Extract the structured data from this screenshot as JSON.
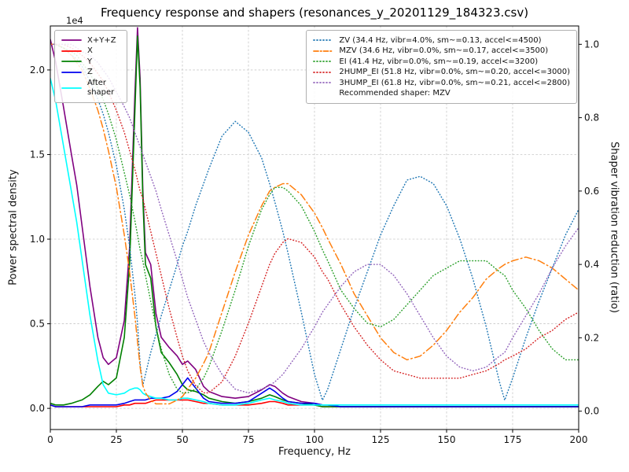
{
  "title": "Frequency response and shapers (resonances_y_20201129_184323.csv)",
  "axes": {
    "x_label": "Frequency, Hz",
    "y_left_label": "Power spectral density",
    "y_left_multiplier": "1e4",
    "y_right_label": "Shaper vibration reduction (ratio)"
  },
  "legend_psd": {
    "items": [
      {
        "key": "xyz",
        "label": "X+Y+Z"
      },
      {
        "key": "x",
        "label": "X"
      },
      {
        "key": "y",
        "label": "Y"
      },
      {
        "key": "z",
        "label": "Z"
      },
      {
        "key": "after",
        "label": "After shaper"
      }
    ]
  },
  "legend_shapers": {
    "items": [
      {
        "key": "zv",
        "label": "ZV (34.4 Hz, vibr=4.0%, sm~=0.13, accel<=4500)"
      },
      {
        "key": "mzv",
        "label": "MZV (34.6 Hz, vibr=0.0%, sm~=0.17, accel<=3500)"
      },
      {
        "key": "ei",
        "label": "EI (41.4 Hz, vibr=0.0%, sm~=0.19, accel<=3200)"
      },
      {
        "key": "hump2",
        "label": "2HUMP_EI (51.8 Hz, vibr=0.0%, sm~=0.20, accel<=3000)"
      },
      {
        "key": "hump3",
        "label": "3HUMP_EI (61.8 Hz, vibr=0.0%, sm~=0.21, accel<=2800)"
      }
    ],
    "recommendation": "Recommended shaper: MZV"
  },
  "chart_data": {
    "type": "line",
    "title": "Frequency response and shapers (resonances_y_20201129_184323.csv)",
    "xlabel": "Frequency, Hz",
    "ylabel_left": "Power spectral density",
    "ylabel_right": "Shaper vibration reduction (ratio)",
    "grid": true,
    "x_range": [
      0,
      200
    ],
    "x_ticks": [
      0,
      25,
      50,
      75,
      100,
      125,
      150,
      175,
      200
    ],
    "y_left_range": [
      -0.125,
      2.26
    ],
    "y_left_ticks": [
      0.0,
      0.5,
      1.0,
      1.5,
      2.0
    ],
    "y_left_units": "1e4",
    "y_right_range": [
      -0.05,
      1.05
    ],
    "y_right_ticks": [
      0.0,
      0.2,
      0.4,
      0.6,
      0.8,
      1.0
    ],
    "recommended_shaper": "MZV",
    "x": [
      0,
      2,
      5,
      8,
      10,
      12,
      15,
      18,
      20,
      22,
      25,
      28,
      30,
      32,
      33,
      34,
      35,
      36,
      38,
      40,
      42,
      45,
      48,
      50,
      52,
      55,
      58,
      60,
      65,
      70,
      75,
      80,
      83,
      85,
      88,
      90,
      95,
      100,
      103,
      105,
      110,
      115,
      120,
      125,
      130,
      135,
      140,
      145,
      150,
      155,
      160,
      165,
      170,
      172,
      175,
      180,
      185,
      190,
      195,
      200
    ],
    "psd_series": [
      {
        "key": "xyz",
        "name": "X+Y+Z",
        "color": "#800080",
        "dash": "solid",
        "axis": "left",
        "values": [
          2.18,
          2.05,
          1.78,
          1.5,
          1.32,
          1.08,
          0.72,
          0.42,
          0.3,
          0.26,
          0.3,
          0.52,
          0.95,
          1.85,
          2.25,
          1.95,
          1.3,
          0.92,
          0.85,
          0.56,
          0.42,
          0.36,
          0.31,
          0.26,
          0.28,
          0.23,
          0.13,
          0.1,
          0.07,
          0.06,
          0.07,
          0.11,
          0.14,
          0.13,
          0.09,
          0.07,
          0.04,
          0.03,
          0.02,
          0.02,
          0.01,
          0.01,
          0.01,
          0.01,
          0.01,
          0.01,
          0.01,
          0.01,
          0.01,
          0.01,
          0.01,
          0.01,
          0.01,
          0.01,
          0.01,
          0.01,
          0.01,
          0.01,
          0.01,
          0.01
        ]
      },
      {
        "key": "x",
        "name": "X",
        "color": "#ff0000",
        "dash": "solid",
        "axis": "left",
        "values": [
          0.02,
          0.01,
          0.01,
          0.01,
          0.01,
          0.01,
          0.01,
          0.01,
          0.01,
          0.01,
          0.01,
          0.02,
          0.02,
          0.03,
          0.03,
          0.03,
          0.03,
          0.03,
          0.04,
          0.05,
          0.05,
          0.05,
          0.05,
          0.05,
          0.05,
          0.04,
          0.03,
          0.03,
          0.02,
          0.02,
          0.02,
          0.03,
          0.04,
          0.04,
          0.03,
          0.02,
          0.02,
          0.02,
          0.01,
          0.01,
          0.01,
          0.01,
          0.01,
          0.01,
          0.01,
          0.01,
          0.01,
          0.01,
          0.01,
          0.01,
          0.01,
          0.01,
          0.01,
          0.01,
          0.01,
          0.01,
          0.01,
          0.01,
          0.01,
          0.01
        ]
      },
      {
        "key": "y",
        "name": "Y",
        "color": "#008000",
        "dash": "solid",
        "axis": "left",
        "values": [
          0.03,
          0.02,
          0.02,
          0.03,
          0.04,
          0.05,
          0.08,
          0.13,
          0.16,
          0.14,
          0.18,
          0.42,
          0.85,
          1.75,
          2.2,
          1.9,
          1.25,
          0.85,
          0.77,
          0.48,
          0.33,
          0.27,
          0.2,
          0.14,
          0.11,
          0.1,
          0.08,
          0.06,
          0.04,
          0.03,
          0.04,
          0.06,
          0.08,
          0.07,
          0.05,
          0.04,
          0.03,
          0.02,
          0.01,
          0.01,
          0.01,
          0.01,
          0.01,
          0.01,
          0.01,
          0.01,
          0.01,
          0.01,
          0.01,
          0.01,
          0.01,
          0.01,
          0.01,
          0.01,
          0.01,
          0.01,
          0.01,
          0.01,
          0.01,
          0.01
        ]
      },
      {
        "key": "z",
        "name": "Z",
        "color": "#0000ee",
        "dash": "solid",
        "axis": "left",
        "values": [
          0.02,
          0.01,
          0.01,
          0.01,
          0.01,
          0.01,
          0.02,
          0.02,
          0.02,
          0.02,
          0.02,
          0.03,
          0.04,
          0.05,
          0.05,
          0.05,
          0.05,
          0.05,
          0.06,
          0.06,
          0.06,
          0.07,
          0.1,
          0.14,
          0.18,
          0.12,
          0.06,
          0.04,
          0.03,
          0.03,
          0.04,
          0.09,
          0.12,
          0.1,
          0.06,
          0.04,
          0.03,
          0.03,
          0.02,
          0.02,
          0.01,
          0.01,
          0.01,
          0.01,
          0.01,
          0.01,
          0.01,
          0.01,
          0.01,
          0.01,
          0.01,
          0.01,
          0.01,
          0.01,
          0.01,
          0.01,
          0.01,
          0.01,
          0.01,
          0.01
        ]
      },
      {
        "key": "after",
        "name": "After shaper",
        "color": "#00ffff",
        "dash": "solid",
        "axis": "left",
        "values": [
          1.95,
          1.82,
          1.55,
          1.28,
          1.1,
          0.88,
          0.55,
          0.28,
          0.14,
          0.09,
          0.08,
          0.09,
          0.11,
          0.12,
          0.12,
          0.11,
          0.09,
          0.08,
          0.07,
          0.06,
          0.06,
          0.05,
          0.05,
          0.06,
          0.06,
          0.05,
          0.04,
          0.03,
          0.02,
          0.02,
          0.03,
          0.05,
          0.06,
          0.05,
          0.04,
          0.03,
          0.02,
          0.02,
          0.02,
          0.02,
          0.02,
          0.02,
          0.02,
          0.02,
          0.02,
          0.02,
          0.02,
          0.02,
          0.02,
          0.02,
          0.02,
          0.02,
          0.02,
          0.02,
          0.02,
          0.02,
          0.02,
          0.02,
          0.02,
          0.02
        ]
      }
    ],
    "shaper_series": [
      {
        "key": "zv",
        "name": "ZV",
        "freq_hz": 34.4,
        "vibr_pct": 4.0,
        "smoothing": 0.13,
        "max_accel": 4500,
        "color": "#1f77b4",
        "dash": "dot",
        "axis": "right",
        "values": [
          1,
          1,
          0.99,
          0.97,
          0.96,
          0.94,
          0.9,
          0.85,
          0.81,
          0.76,
          0.67,
          0.55,
          0.45,
          0.32,
          0.24,
          0.13,
          0.07,
          0.1,
          0.16,
          0.21,
          0.26,
          0.33,
          0.4,
          0.45,
          0.49,
          0.56,
          0.62,
          0.66,
          0.75,
          0.79,
          0.76,
          0.69,
          0.62,
          0.57,
          0.49,
          0.43,
          0.27,
          0.1,
          0.03,
          0.06,
          0.17,
          0.28,
          0.38,
          0.48,
          0.56,
          0.63,
          0.64,
          0.62,
          0.56,
          0.47,
          0.36,
          0.23,
          0.08,
          0.03,
          0.09,
          0.2,
          0.3,
          0.39,
          0.48,
          0.55
        ]
      },
      {
        "key": "mzv",
        "name": "MZV",
        "freq_hz": 34.6,
        "vibr_pct": 0.0,
        "smoothing": 0.17,
        "max_accel": 3500,
        "color": "#ff7f0e",
        "dash": "dashdot",
        "axis": "right",
        "values": [
          1,
          1,
          0.99,
          0.97,
          0.95,
          0.93,
          0.88,
          0.82,
          0.77,
          0.71,
          0.61,
          0.48,
          0.38,
          0.26,
          0.19,
          0.12,
          0.07,
          0.05,
          0.03,
          0.02,
          0.02,
          0.02,
          0.03,
          0.04,
          0.06,
          0.09,
          0.13,
          0.16,
          0.27,
          0.38,
          0.48,
          0.56,
          0.6,
          0.61,
          0.62,
          0.62,
          0.59,
          0.54,
          0.5,
          0.47,
          0.4,
          0.32,
          0.26,
          0.2,
          0.16,
          0.14,
          0.15,
          0.18,
          0.22,
          0.27,
          0.31,
          0.36,
          0.39,
          0.4,
          0.41,
          0.42,
          0.41,
          0.39,
          0.36,
          0.33
        ]
      },
      {
        "key": "ei",
        "name": "EI",
        "freq_hz": 41.4,
        "vibr_pct": 0.0,
        "smoothing": 0.19,
        "max_accel": 3200,
        "color": "#2ca02c",
        "dash": "dot",
        "axis": "right",
        "values": [
          1,
          1,
          0.99,
          0.98,
          0.97,
          0.95,
          0.92,
          0.88,
          0.85,
          0.81,
          0.74,
          0.65,
          0.59,
          0.52,
          0.48,
          0.44,
          0.41,
          0.37,
          0.3,
          0.23,
          0.17,
          0.1,
          0.06,
          0.05,
          0.05,
          0.06,
          0.09,
          0.12,
          0.22,
          0.33,
          0.45,
          0.55,
          0.59,
          0.61,
          0.61,
          0.6,
          0.56,
          0.49,
          0.44,
          0.41,
          0.33,
          0.28,
          0.24,
          0.23,
          0.25,
          0.29,
          0.33,
          0.37,
          0.39,
          0.41,
          0.41,
          0.41,
          0.38,
          0.37,
          0.33,
          0.28,
          0.22,
          0.17,
          0.14,
          0.14
        ]
      },
      {
        "key": "hump2",
        "name": "2HUMP_EI",
        "freq_hz": 51.8,
        "vibr_pct": 0.0,
        "smoothing": 0.2,
        "max_accel": 3000,
        "color": "#d62728",
        "dash": "dot",
        "axis": "right",
        "values": [
          1,
          1,
          1,
          0.99,
          0.98,
          0.97,
          0.95,
          0.92,
          0.9,
          0.87,
          0.82,
          0.76,
          0.71,
          0.66,
          0.63,
          0.6,
          0.58,
          0.55,
          0.49,
          0.43,
          0.37,
          0.28,
          0.2,
          0.15,
          0.11,
          0.07,
          0.05,
          0.05,
          0.08,
          0.15,
          0.24,
          0.34,
          0.4,
          0.43,
          0.46,
          0.47,
          0.46,
          0.42,
          0.38,
          0.36,
          0.29,
          0.23,
          0.18,
          0.14,
          0.11,
          0.1,
          0.09,
          0.09,
          0.09,
          0.09,
          0.1,
          0.11,
          0.13,
          0.14,
          0.15,
          0.17,
          0.2,
          0.22,
          0.25,
          0.27
        ]
      },
      {
        "key": "hump3",
        "name": "3HUMP_EI",
        "freq_hz": 61.8,
        "vibr_pct": 0.0,
        "smoothing": 0.21,
        "max_accel": 2800,
        "color": "#9467bd",
        "dash": "dot",
        "axis": "right",
        "values": [
          1,
          1,
          1,
          1,
          0.99,
          0.98,
          0.97,
          0.95,
          0.93,
          0.91,
          0.87,
          0.83,
          0.8,
          0.76,
          0.74,
          0.72,
          0.7,
          0.68,
          0.64,
          0.6,
          0.55,
          0.48,
          0.41,
          0.36,
          0.31,
          0.25,
          0.19,
          0.16,
          0.1,
          0.06,
          0.05,
          0.06,
          0.07,
          0.08,
          0.1,
          0.12,
          0.17,
          0.23,
          0.27,
          0.29,
          0.34,
          0.38,
          0.4,
          0.4,
          0.37,
          0.32,
          0.26,
          0.2,
          0.15,
          0.12,
          0.11,
          0.12,
          0.15,
          0.16,
          0.2,
          0.26,
          0.32,
          0.39,
          0.45,
          0.5
        ]
      }
    ]
  }
}
